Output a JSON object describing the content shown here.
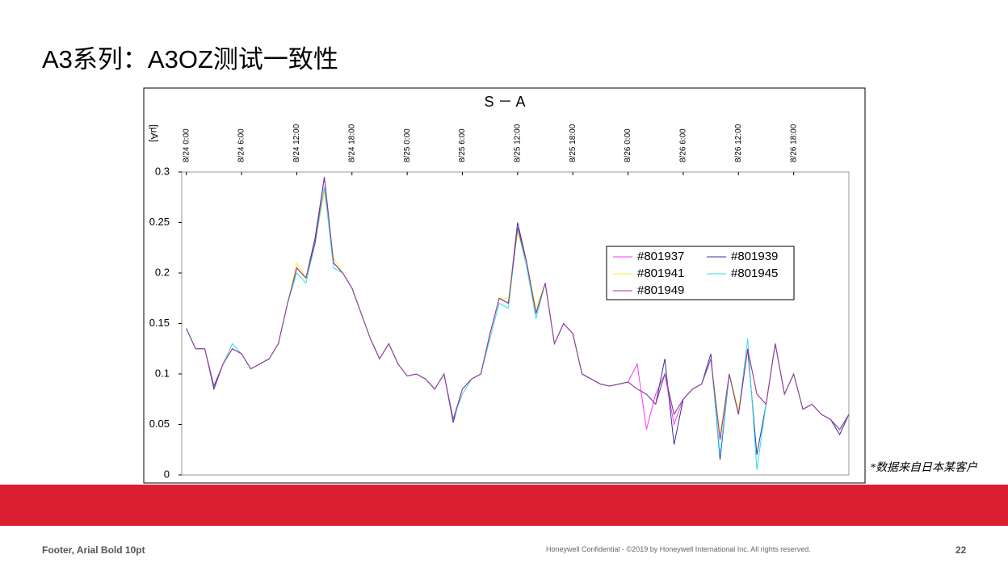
{
  "header": {
    "title": "A3系列：A3OZ测试一致性"
  },
  "note": "*数据来自日本某客户",
  "footer": {
    "left": "Footer, Arial Bold 10pt",
    "middle": "Honeywell Confidential - ©2019 by Honeywell International Inc. All rights reserved.",
    "page": "22"
  },
  "chart_data": {
    "type": "line",
    "title": "S － A",
    "y_label": "[μA]",
    "xlim": [
      -0.5,
      72
    ],
    "ylim": [
      0,
      0.3
    ],
    "xticks": [
      {
        "value": 0,
        "label": "8/24 0:00"
      },
      {
        "value": 6,
        "label": "8/24 6:00"
      },
      {
        "value": 12,
        "label": "8/24 12:00"
      },
      {
        "value": 18,
        "label": "8/24 18:00"
      },
      {
        "value": 24,
        "label": "8/25 0:00"
      },
      {
        "value": 30,
        "label": "8/25 6:00"
      },
      {
        "value": 36,
        "label": "8/25 12:00"
      },
      {
        "value": 42,
        "label": "8/25 18:00"
      },
      {
        "value": 48,
        "label": "8/26 0:00"
      },
      {
        "value": 54,
        "label": "8/26 6:00"
      },
      {
        "value": 60,
        "label": "8/26 12:00"
      },
      {
        "value": 66,
        "label": "8/26 18:00"
      }
    ],
    "yticks": [
      0,
      0.05,
      0.1,
      0.15,
      0.2,
      0.25,
      0.3
    ],
    "legend": "upper right",
    "x": [
      0,
      1,
      2,
      3,
      4,
      5,
      6,
      7,
      8,
      9,
      10,
      11,
      12,
      13,
      14,
      15,
      16,
      17,
      18,
      19,
      20,
      21,
      22,
      23,
      24,
      25,
      26,
      27,
      28,
      29,
      30,
      31,
      32,
      33,
      34,
      35,
      36,
      37,
      38,
      39,
      40,
      41,
      42,
      43,
      44,
      45,
      46,
      47,
      48,
      49,
      50,
      51,
      52,
      53,
      54,
      55,
      56,
      57,
      58,
      59,
      60,
      61,
      62,
      63,
      64,
      65,
      66,
      67,
      68,
      69,
      70,
      71,
      72
    ],
    "series": [
      {
        "name": "#801937",
        "color": "#ff33ff",
        "values": [
          0.145,
          0.125,
          0.125,
          0.088,
          0.11,
          0.125,
          0.12,
          0.105,
          0.11,
          0.115,
          0.13,
          0.17,
          0.205,
          0.195,
          0.23,
          0.285,
          0.21,
          0.2,
          0.185,
          0.16,
          0.135,
          0.115,
          0.13,
          0.11,
          0.098,
          0.1,
          0.095,
          0.085,
          0.1,
          0.055,
          0.085,
          0.095,
          0.1,
          0.14,
          0.175,
          0.17,
          0.245,
          0.21,
          0.16,
          0.19,
          0.13,
          0.15,
          0.14,
          0.1,
          0.095,
          0.09,
          0.088,
          0.09,
          0.092,
          0.11,
          0.045,
          0.08,
          0.1,
          0.05,
          0.075,
          0.085,
          0.09,
          0.115,
          0.035,
          0.1,
          0.06,
          0.125,
          0.08,
          0.07,
          0.13,
          0.08,
          0.1,
          0.065,
          0.07,
          0.06,
          0.055,
          0.045,
          0.06
        ]
      },
      {
        "name": "#801939",
        "color": "#333399",
        "values": [
          0.145,
          0.125,
          0.125,
          0.085,
          0.11,
          0.125,
          0.12,
          0.105,
          0.11,
          0.115,
          0.13,
          0.17,
          0.205,
          0.195,
          0.235,
          0.295,
          0.21,
          0.2,
          0.185,
          0.16,
          0.135,
          0.115,
          0.13,
          0.11,
          0.098,
          0.1,
          0.095,
          0.085,
          0.1,
          0.052,
          0.085,
          0.095,
          0.1,
          0.14,
          0.175,
          0.17,
          0.25,
          0.21,
          0.16,
          0.19,
          0.13,
          0.15,
          0.14,
          0.1,
          0.095,
          0.09,
          0.088,
          0.09,
          0.092,
          0.085,
          0.08,
          0.07,
          0.115,
          0.03,
          0.075,
          0.085,
          0.09,
          0.12,
          0.015,
          0.1,
          0.06,
          0.125,
          0.02,
          0.07,
          0.13,
          0.08,
          0.1,
          0.065,
          0.07,
          0.06,
          0.055,
          0.04,
          0.06
        ]
      },
      {
        "name": "#801941",
        "color": "#ffee33",
        "values": [
          0.145,
          0.125,
          0.125,
          0.088,
          0.11,
          0.125,
          0.12,
          0.105,
          0.11,
          0.115,
          0.13,
          0.17,
          0.21,
          0.195,
          0.23,
          0.28,
          0.215,
          0.2,
          0.185,
          0.16,
          0.135,
          0.115,
          0.13,
          0.11,
          0.098,
          0.1,
          0.095,
          0.085,
          0.1,
          0.055,
          0.085,
          0.095,
          0.1,
          0.14,
          0.175,
          0.175,
          0.24,
          0.21,
          0.165,
          0.19,
          0.13,
          0.15,
          0.14,
          0.1,
          0.095,
          0.09,
          0.088,
          0.09,
          0.092,
          0.085,
          0.08,
          0.07,
          0.1,
          0.06,
          0.075,
          0.085,
          0.09,
          0.115,
          0.04,
          0.1,
          0.065,
          0.125,
          0.08,
          0.07,
          0.13,
          0.08,
          0.1,
          0.065,
          0.07,
          0.06,
          0.055,
          0.045,
          0.06
        ]
      },
      {
        "name": "#801945",
        "color": "#33ddee",
        "values": [
          0.145,
          0.125,
          0.125,
          0.088,
          0.11,
          0.13,
          0.12,
          0.105,
          0.11,
          0.115,
          0.13,
          0.17,
          0.2,
          0.19,
          0.23,
          0.285,
          0.205,
          0.2,
          0.185,
          0.16,
          0.135,
          0.115,
          0.13,
          0.11,
          0.098,
          0.1,
          0.095,
          0.085,
          0.1,
          0.055,
          0.08,
          0.095,
          0.1,
          0.135,
          0.17,
          0.165,
          0.245,
          0.205,
          0.155,
          0.19,
          0.13,
          0.15,
          0.14,
          0.1,
          0.095,
          0.09,
          0.088,
          0.09,
          0.092,
          0.085,
          0.08,
          0.07,
          0.1,
          0.06,
          0.075,
          0.085,
          0.09,
          0.115,
          0.02,
          0.1,
          0.06,
          0.135,
          0.005,
          0.07,
          0.13,
          0.08,
          0.1,
          0.065,
          0.07,
          0.06,
          0.055,
          0.045,
          0.06
        ]
      },
      {
        "name": "#801949",
        "color": "#993399",
        "values": [
          0.145,
          0.125,
          0.125,
          0.088,
          0.11,
          0.125,
          0.12,
          0.105,
          0.11,
          0.115,
          0.13,
          0.17,
          0.205,
          0.195,
          0.23,
          0.295,
          0.21,
          0.2,
          0.185,
          0.16,
          0.135,
          0.115,
          0.13,
          0.11,
          0.098,
          0.1,
          0.095,
          0.085,
          0.1,
          0.055,
          0.085,
          0.095,
          0.1,
          0.14,
          0.175,
          0.17,
          0.245,
          0.21,
          0.16,
          0.19,
          0.13,
          0.15,
          0.14,
          0.1,
          0.095,
          0.09,
          0.088,
          0.09,
          0.092,
          0.085,
          0.08,
          0.07,
          0.1,
          0.06,
          0.075,
          0.085,
          0.09,
          0.115,
          0.035,
          0.1,
          0.06,
          0.125,
          0.08,
          0.07,
          0.13,
          0.08,
          0.1,
          0.065,
          0.07,
          0.06,
          0.055,
          0.045,
          0.06
        ]
      }
    ]
  }
}
